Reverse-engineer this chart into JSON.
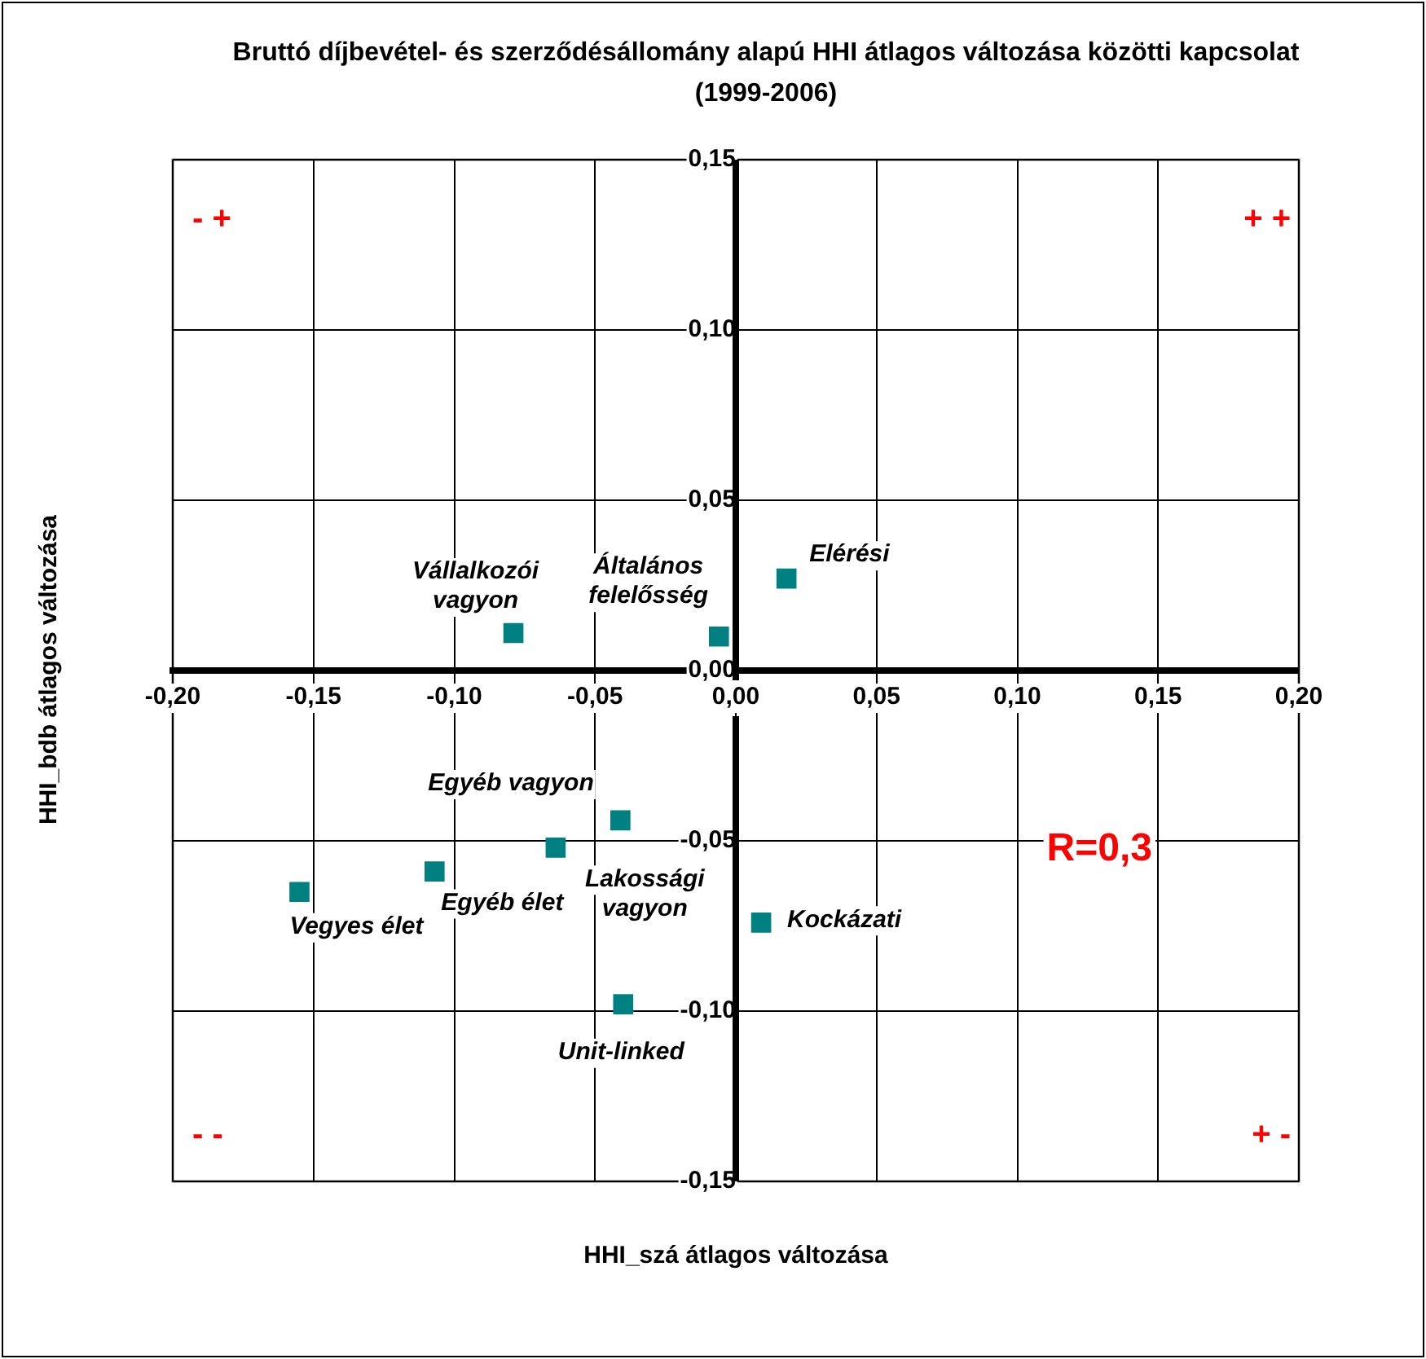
{
  "chart_data": {
    "type": "scatter",
    "title": "Bruttó díjbevétel- és szerződésállomány alapú HHI átlagos változása közötti kapcsolat (1999-2006)",
    "xlabel": "HHI_szá átlagos változása",
    "ylabel": "HHI_bdb átlagos változása",
    "x": [
      -0.079,
      -0.006,
      0.018,
      -0.041,
      -0.064,
      -0.107,
      -0.155,
      0.009,
      -0.04
    ],
    "values": [
      0.011,
      0.01,
      0.027,
      -0.044,
      -0.052,
      -0.059,
      -0.065,
      -0.074,
      -0.098
    ],
    "color": "#008080",
    "marker": "square",
    "grid": true,
    "xlim": [
      -0.2,
      0.2
    ],
    "xticks": [
      {
        "value": -0.2,
        "label": "-0,20"
      },
      {
        "value": -0.15,
        "label": "-0,15"
      },
      {
        "value": -0.1,
        "label": "-0,10"
      },
      {
        "value": -0.05,
        "label": "-0,05"
      },
      {
        "value": 0,
        "label": "0,00"
      },
      {
        "value": 0.05,
        "label": "0,05"
      },
      {
        "value": 0.1,
        "label": "0,10"
      },
      {
        "value": 0.15,
        "label": "0,15"
      },
      {
        "value": 0.2,
        "label": "0,20"
      }
    ],
    "ylim": [
      -0.15,
      0.15
    ],
    "yticks": [
      {
        "value": -0.15,
        "label": "-0,15"
      },
      {
        "value": -0.1,
        "label": "-0,10"
      },
      {
        "value": -0.05,
        "label": "-0,05"
      },
      {
        "value": 0,
        "label": "0,00"
      },
      {
        "value": 0.05,
        "label": "0,05"
      },
      {
        "value": 0.1,
        "label": "0,10"
      },
      {
        "value": 0.15,
        "label": "0,15"
      }
    ],
    "annotations": [
      {
        "text": "Vállalkozói\nvagyon",
        "x": -0.079,
        "y": 0.011
      },
      {
        "text": "Általános\nfelelősség",
        "x": -0.006,
        "y": 0.01
      },
      {
        "text": "Elérési",
        "x": 0.018,
        "y": 0.027
      },
      {
        "text": "Egyéb vagyon",
        "x": -0.041,
        "y": -0.044
      },
      {
        "text": "Lakossági\nvagyon",
        "x": -0.064,
        "y": -0.052
      },
      {
        "text": "Egyéb élet",
        "x": -0.107,
        "y": -0.059
      },
      {
        "text": "Vegyes élet",
        "x": -0.155,
        "y": -0.065
      },
      {
        "text": "Kockázati",
        "x": 0.009,
        "y": -0.074
      },
      {
        "text": "Unit-linked",
        "x": -0.04,
        "y": -0.098
      },
      "- +",
      "+ +",
      "- -",
      "+ -",
      "R=0,3"
    ]
  }
}
